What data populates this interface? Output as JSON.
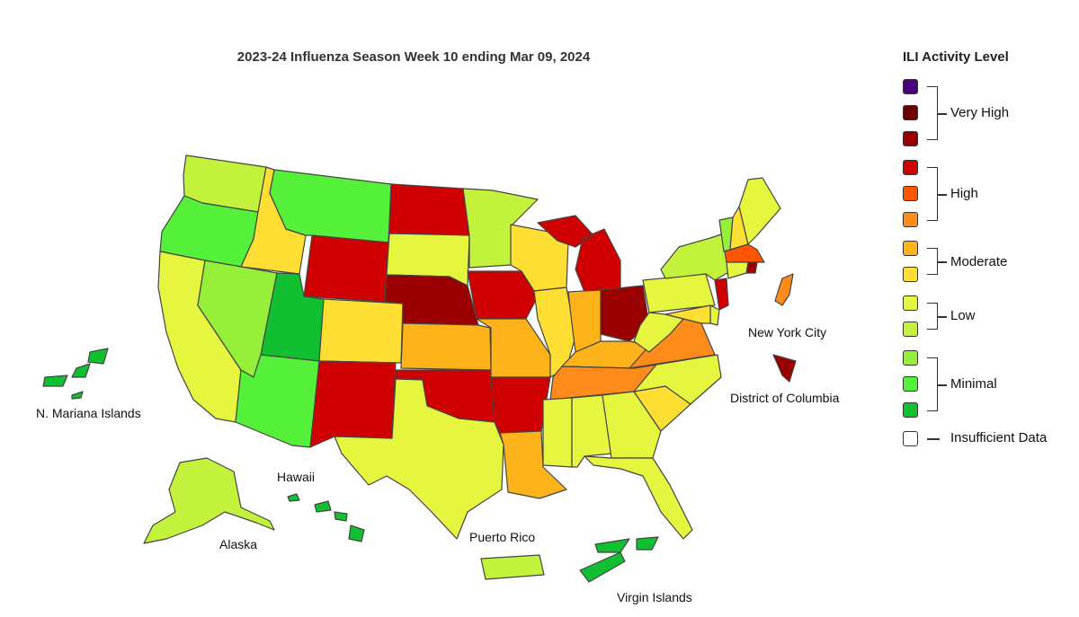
{
  "title": "2023-24 Influenza Season Week 10 ending Mar 09, 2024",
  "legend": {
    "title": "ILI Activity Level",
    "swatches": [
      {
        "level": 13,
        "color": "#4b0082"
      },
      {
        "level": 12,
        "color": "#6e0000"
      },
      {
        "level": 11,
        "color": "#9a0000"
      },
      {
        "level": 10,
        "color": "#d10000"
      },
      {
        "level": 9,
        "color": "#ff5500"
      },
      {
        "level": 8,
        "color": "#ff8c1a"
      },
      {
        "level": 7,
        "color": "#ffb31a"
      },
      {
        "level": 6,
        "color": "#ffdf33"
      },
      {
        "level": 5,
        "color": "#e6f53d"
      },
      {
        "level": 4,
        "color": "#c2f23c"
      },
      {
        "level": 3,
        "color": "#96f03a"
      },
      {
        "level": 2,
        "color": "#55f03a"
      },
      {
        "level": 1,
        "color": "#10c030"
      },
      {
        "level": 0,
        "color": "#ffffff"
      }
    ],
    "groups": [
      {
        "label": "Very High"
      },
      {
        "label": "High"
      },
      {
        "label": "Moderate"
      },
      {
        "label": "Low"
      },
      {
        "label": "Minimal"
      }
    ],
    "insufficient_label": "Insufficient Data"
  },
  "labels": {
    "nmi": "N. Mariana Islands",
    "hawaii": "Hawaii",
    "alaska": "Alaska",
    "puerto_rico": "Puerto Rico",
    "virgin_islands": "Virgin Islands",
    "nyc": "New York City",
    "dc": "District of Columbia"
  },
  "colors": {
    "WA": "#c2f23c",
    "OR": "#55f03a",
    "CA": "#e6f53d",
    "ID": "#ffdf33",
    "NV": "#96f03a",
    "MT": "#55f03a",
    "WY": "#d10000",
    "UT": "#10c030",
    "AZ": "#55f03a",
    "CO": "#ffdf33",
    "NM": "#d10000",
    "ND": "#d10000",
    "SD": "#e6f53d",
    "NE": "#9a0000",
    "KS": "#ffb31a",
    "OK": "#d10000",
    "TX": "#e6f53d",
    "MN": "#c2f23c",
    "IA": "#d10000",
    "MO": "#ffb31a",
    "AR": "#d10000",
    "LA": "#ffb31a",
    "WI": "#ffdf33",
    "IL": "#ffdf33",
    "MI": "#d10000",
    "IN": "#ffb31a",
    "OH": "#9a0000",
    "KY": "#ffb31a",
    "TN": "#ff8c1a",
    "MS": "#e6f53d",
    "AL": "#e6f53d",
    "GA": "#e6f53d",
    "FL": "#e6f53d",
    "SC": "#ffdf33",
    "NC": "#e6f53d",
    "VA": "#ff8c1a",
    "WV": "#e6f53d",
    "PA": "#e6f53d",
    "NY": "#c2f23c",
    "VT": "#96f03a",
    "NH": "#ffdf33",
    "ME": "#e6f53d",
    "MA": "#ff5500",
    "RI": "#9a0000",
    "CT": "#e6f53d",
    "NJ": "#d10000",
    "DE": "#e6f53d",
    "MD": "#ffdf33",
    "AK": "#c2f23c",
    "HI": "#10c030",
    "PR": "#c2f23c",
    "VI": "#10c030",
    "NMI": "#10c030",
    "NYC": "#ff8c1a",
    "DC": "#9a0000"
  }
}
